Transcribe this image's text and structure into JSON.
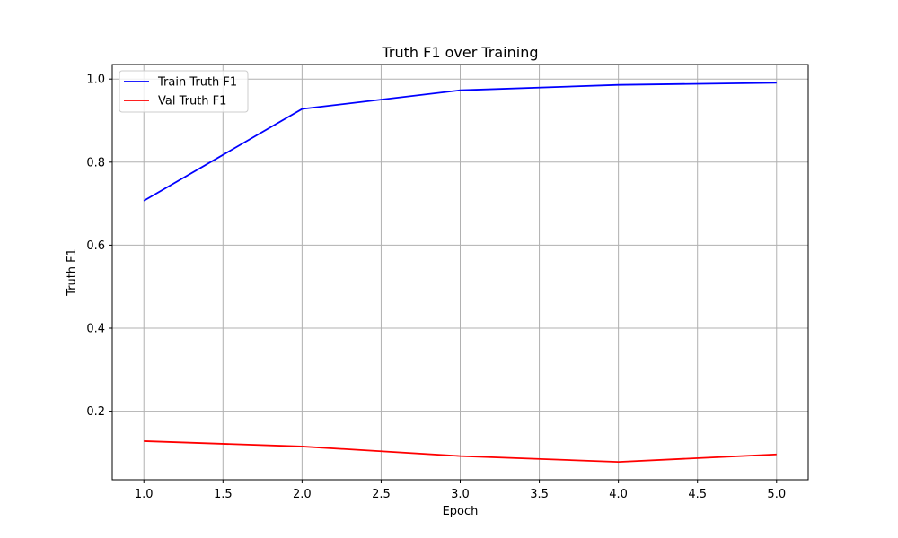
{
  "chart_data": {
    "type": "line",
    "title": "Truth F1 over Training",
    "xlabel": "Epoch",
    "ylabel": "Truth F1",
    "x": [
      1,
      2,
      3,
      4,
      5
    ],
    "xlim": [
      0.8,
      5.2
    ],
    "ylim": [
      0.035,
      1.035
    ],
    "xticks": [
      1.0,
      1.5,
      2.0,
      2.5,
      3.0,
      3.5,
      4.0,
      4.5,
      5.0
    ],
    "xtick_labels": [
      "1.0",
      "1.5",
      "2.0",
      "2.5",
      "3.0",
      "3.5",
      "4.0",
      "4.5",
      "5.0"
    ],
    "yticks": [
      0.2,
      0.4,
      0.6,
      0.8,
      1.0
    ],
    "ytick_labels": [
      "0.2",
      "0.4",
      "0.6",
      "0.8",
      "1.0"
    ],
    "grid": true,
    "legend_position": "upper-left",
    "series": [
      {
        "name": "Train Truth F1",
        "color": "#0000ff",
        "values": [
          0.707,
          0.928,
          0.973,
          0.986,
          0.991
        ]
      },
      {
        "name": "Val Truth F1",
        "color": "#ff0000",
        "values": [
          0.128,
          0.115,
          0.092,
          0.078,
          0.096
        ]
      }
    ]
  }
}
